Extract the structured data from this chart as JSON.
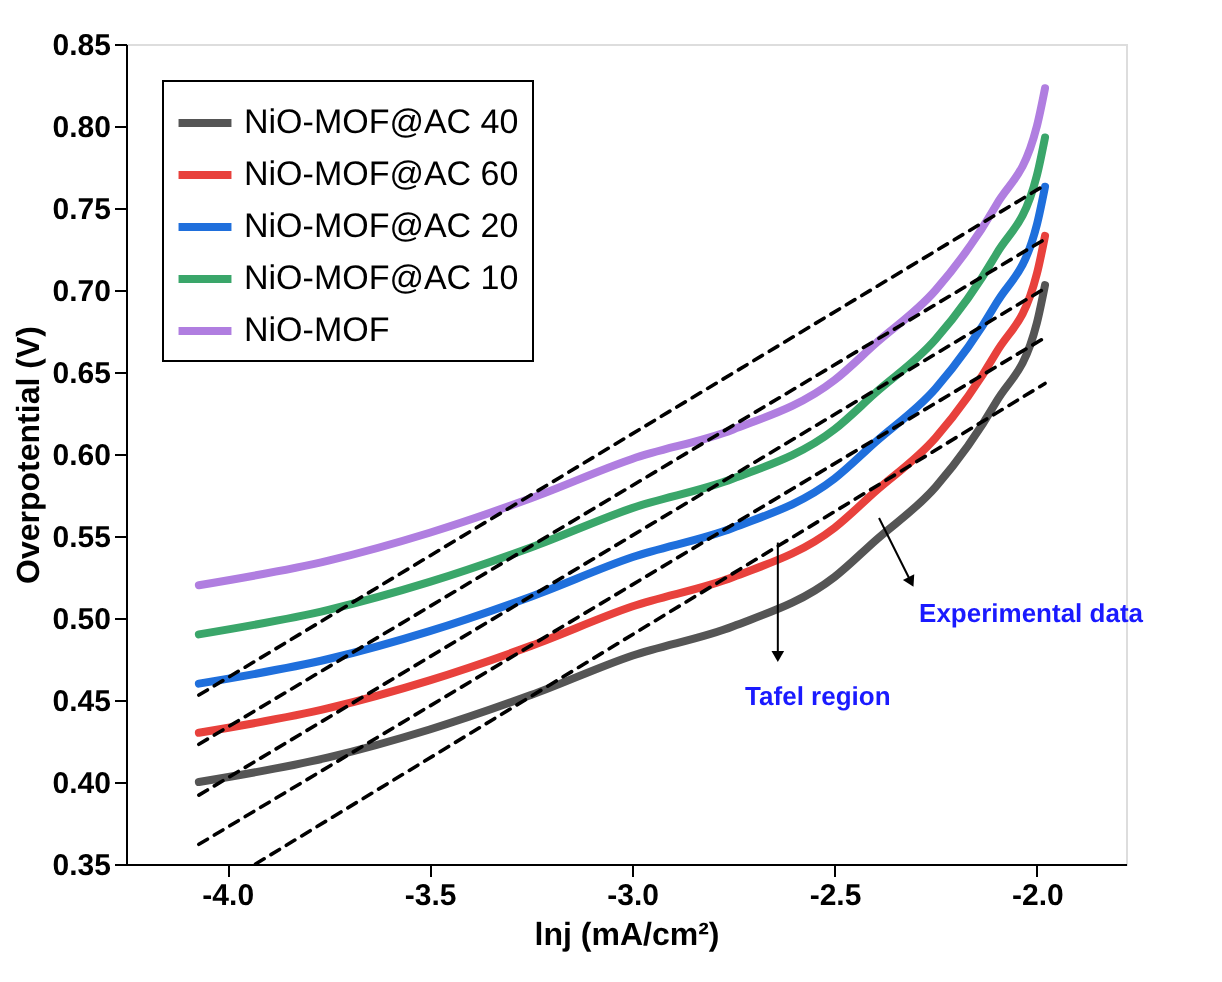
{
  "chart_data": {
    "type": "line",
    "xlabel": "lnj (mA/cm²)",
    "ylabel": "Overpotential (V)",
    "x": [
      -4.07,
      -3.75,
      -3.5,
      -3.25,
      -3.0,
      -2.75,
      -2.5,
      -2.4,
      -2.25,
      -2.1,
      -2.0,
      -1.98
    ],
    "series": [
      {
        "name": "NiO-MOF@AC 40",
        "color": "#555555",
        "values": [
          0.4,
          0.415,
          0.432,
          0.453,
          0.477,
          0.495,
          0.525,
          0.547,
          0.58,
          0.632,
          0.68,
          0.703
        ]
      },
      {
        "name": "NiO-MOF@AC 60",
        "color": "#e8413c",
        "values": [
          0.43,
          0.445,
          0.462,
          0.483,
          0.507,
          0.525,
          0.555,
          0.577,
          0.61,
          0.662,
          0.71,
          0.733
        ]
      },
      {
        "name": "NiO-MOF@AC 20",
        "color": "#1f6fdc",
        "values": [
          0.46,
          0.475,
          0.492,
          0.513,
          0.537,
          0.555,
          0.585,
          0.607,
          0.64,
          0.692,
          0.74,
          0.763
        ]
      },
      {
        "name": "NiO-MOF@AC 10",
        "color": "#3aa66a",
        "values": [
          0.49,
          0.505,
          0.522,
          0.543,
          0.567,
          0.585,
          0.615,
          0.637,
          0.67,
          0.722,
          0.77,
          0.793
        ]
      },
      {
        "name": "NiO-MOF",
        "color": "#b07ee0",
        "values": [
          0.52,
          0.535,
          0.552,
          0.573,
          0.597,
          0.615,
          0.645,
          0.667,
          0.7,
          0.752,
          0.8,
          0.823
        ]
      },
      {
        "type": "line",
        "color": "#000000",
        "line_style": "dashed",
        "x": [
          -4.07,
          -1.98
        ],
        "values": [
          0.453,
          0.764
        ]
      },
      {
        "type": "line",
        "color": "#000000",
        "line_style": "dashed",
        "x": [
          -4.07,
          -1.98
        ],
        "values": [
          0.423,
          0.731
        ]
      },
      {
        "type": "line",
        "color": "#000000",
        "line_style": "dashed",
        "x": [
          -4.07,
          -1.98
        ],
        "values": [
          0.392,
          0.701
        ]
      },
      {
        "type": "line",
        "color": "#000000",
        "line_style": "dashed",
        "x": [
          -4.07,
          -1.98
        ],
        "values": [
          0.362,
          0.671
        ]
      },
      {
        "type": "line",
        "color": "#000000",
        "line_style": "dashed",
        "x": [
          -3.93,
          -1.98
        ],
        "values": [
          0.35,
          0.643
        ]
      }
    ],
    "annotations": [
      {
        "text": "Tafel region",
        "x": -2.64,
        "y": 0.546
      },
      {
        "text": "Experimental data",
        "x": -2.39,
        "y": 0.561
      }
    ],
    "xlim": [
      -4.25,
      -1.78
    ],
    "xticks": [
      {
        "value": -4.0,
        "label": "-4.0"
      },
      {
        "value": -3.5,
        "label": "-3.5"
      },
      {
        "value": -3.0,
        "label": "-3.0"
      },
      {
        "value": -2.5,
        "label": "-2.5"
      },
      {
        "value": -2.0,
        "label": "-2.0"
      }
    ],
    "ylim": [
      0.35,
      0.85
    ],
    "yticks": [
      0.35,
      {
        "value": 0.4,
        "label": "0.40"
      },
      0.45,
      {
        "value": 0.5,
        "label": "0.50"
      },
      0.55,
      {
        "value": 0.6,
        "label": "0.60"
      },
      0.65,
      {
        "value": 0.7,
        "label": "0.70"
      },
      0.75,
      {
        "value": 0.8,
        "label": "0.80"
      },
      0.85
    ],
    "legend": "top left",
    "grid": false,
    "line_style": "solid",
    "marker": "none"
  }
}
